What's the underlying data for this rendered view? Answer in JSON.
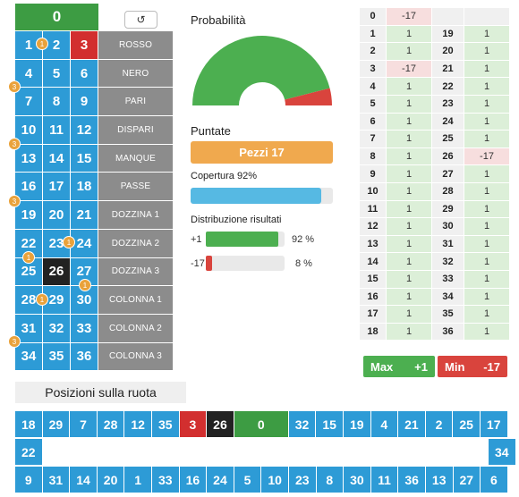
{
  "board": {
    "zero": "0",
    "reset_icon": "undo-icon",
    "rows": [
      [
        "1",
        "2",
        "3"
      ],
      [
        "4",
        "5",
        "6"
      ],
      [
        "7",
        "8",
        "9"
      ],
      [
        "10",
        "11",
        "12"
      ],
      [
        "13",
        "14",
        "15"
      ],
      [
        "16",
        "17",
        "18"
      ],
      [
        "19",
        "20",
        "21"
      ],
      [
        "22",
        "23",
        "24"
      ],
      [
        "25",
        "26",
        "27"
      ],
      [
        "28",
        "29",
        "30"
      ],
      [
        "31",
        "32",
        "33"
      ],
      [
        "34",
        "35",
        "36"
      ]
    ],
    "red_numbers": [
      "3"
    ],
    "black_numbers": [
      "26"
    ],
    "bets": [
      "ROSSO",
      "NERO",
      "PARI",
      "DISPARI",
      "MANQUE",
      "PASSE",
      "DOZZINA 1",
      "DOZZINA 2",
      "DOZZINA 3",
      "COLONNA 1",
      "COLONNA 2",
      "COLONNA 3"
    ],
    "chips": [
      "1",
      "3",
      "3",
      "3",
      "1",
      "1",
      "1",
      "1",
      "3"
    ]
  },
  "probability": {
    "title": "Probabilità",
    "win_fraction": 0.92,
    "lose_fraction": 0.08,
    "colors": {
      "win": "#4caf50",
      "lose": "#d9443d"
    }
  },
  "stakes": {
    "title": "Puntate",
    "value": "Pezzi 17"
  },
  "coverage": {
    "label": "Copertura 92%",
    "fraction": 0.92
  },
  "distribution": {
    "title": "Distribuzione risultati",
    "rows": [
      {
        "label": "+1",
        "pct": "92 %",
        "fraction": 0.92
      },
      {
        "label": "-17",
        "pct": "8 %",
        "fraction": 0.08
      }
    ]
  },
  "results_table": {
    "zero_row": {
      "num": "0",
      "val": "-17"
    },
    "rows": [
      {
        "a": "1",
        "av": "1",
        "b": "19",
        "bv": "1"
      },
      {
        "a": "2",
        "av": "1",
        "b": "20",
        "bv": "1"
      },
      {
        "a": "3",
        "av": "-17",
        "b": "21",
        "bv": "1"
      },
      {
        "a": "4",
        "av": "1",
        "b": "22",
        "bv": "1"
      },
      {
        "a": "5",
        "av": "1",
        "b": "23",
        "bv": "1"
      },
      {
        "a": "6",
        "av": "1",
        "b": "24",
        "bv": "1"
      },
      {
        "a": "7",
        "av": "1",
        "b": "25",
        "bv": "1"
      },
      {
        "a": "8",
        "av": "1",
        "b": "26",
        "bv": "-17"
      },
      {
        "a": "9",
        "av": "1",
        "b": "27",
        "bv": "1"
      },
      {
        "a": "10",
        "av": "1",
        "b": "28",
        "bv": "1"
      },
      {
        "a": "11",
        "av": "1",
        "b": "29",
        "bv": "1"
      },
      {
        "a": "12",
        "av": "1",
        "b": "30",
        "bv": "1"
      },
      {
        "a": "13",
        "av": "1",
        "b": "31",
        "bv": "1"
      },
      {
        "a": "14",
        "av": "1",
        "b": "32",
        "bv": "1"
      },
      {
        "a": "15",
        "av": "1",
        "b": "33",
        "bv": "1"
      },
      {
        "a": "16",
        "av": "1",
        "b": "34",
        "bv": "1"
      },
      {
        "a": "17",
        "av": "1",
        "b": "35",
        "bv": "1"
      },
      {
        "a": "18",
        "av": "1",
        "b": "36",
        "bv": "1"
      }
    ]
  },
  "summary": {
    "max_label": "Max",
    "max_value": "+1",
    "min_label": "Min",
    "min_value": "-17"
  },
  "wheel": {
    "title": "Posizioni sulla ruota",
    "top": [
      "18",
      "29",
      "7",
      "28",
      "12",
      "35",
      "3",
      "26",
      "0",
      "32",
      "15",
      "19",
      "4",
      "21",
      "2",
      "25",
      "17"
    ],
    "left": "22",
    "right": "34",
    "bottom": [
      "9",
      "31",
      "14",
      "20",
      "1",
      "33",
      "16",
      "24",
      "5",
      "10",
      "23",
      "8",
      "30",
      "11",
      "36",
      "13",
      "27",
      "6"
    ],
    "red_numbers": [
      "3"
    ],
    "black_numbers": [
      "26"
    ],
    "green_numbers": [
      "0"
    ]
  }
}
